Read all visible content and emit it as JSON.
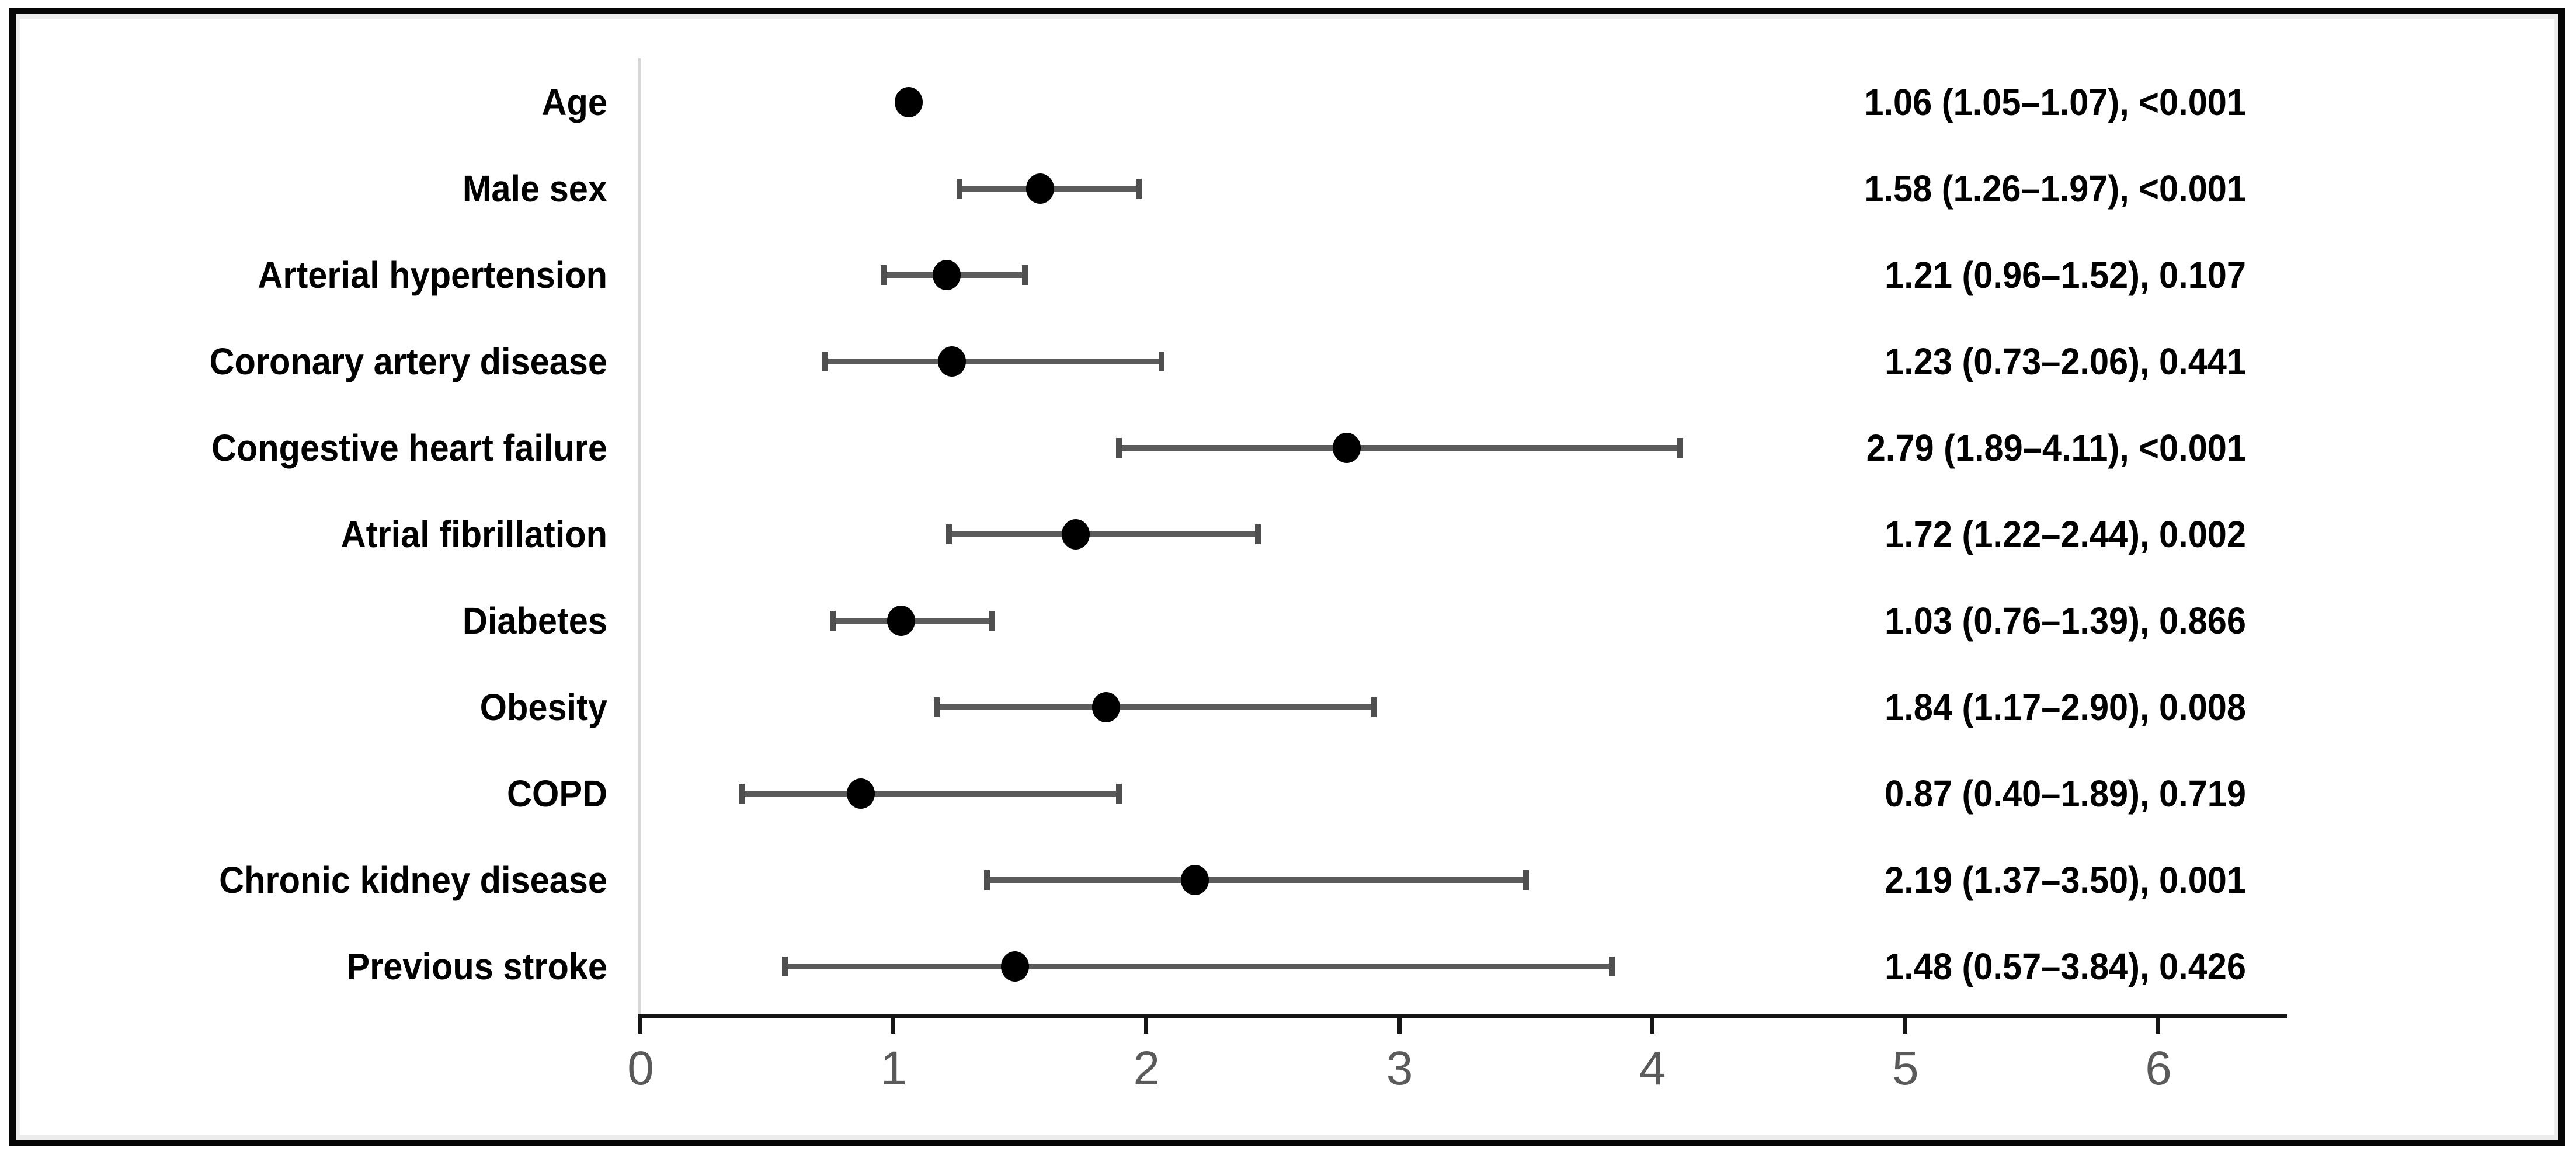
{
  "figure": {
    "background_color": "#ffffff",
    "frame_border_color": "#060606",
    "frame_inner_edge_color": "#ececec"
  },
  "chart_data": {
    "type": "scatter",
    "subtype": "forest-plot",
    "orientation": "horizontal",
    "title": "",
    "xlabel": "",
    "ylabel": "",
    "xlim": [
      0,
      6.5
    ],
    "x_ticks": [
      "0",
      "1",
      "2",
      "3",
      "4",
      "5",
      "6"
    ],
    "grid": false,
    "legend": null,
    "axis_color": "#161616",
    "tick_label_color": "#5a5a5a",
    "errorbar_color": "#5b5b5b",
    "errorbar_cap_color": "#4f4f4f",
    "marker_color": "#000000",
    "zero_reference_line_color": "#d7d7d7",
    "value_column_format": "estimate (ci_low–ci_high), p",
    "rows": [
      {
        "label": "Age",
        "estimate": 1.06,
        "ci_low": 1.05,
        "ci_high": 1.07,
        "p": "<0.001",
        "value_text": "1.06 (1.05–1.07), <0.001"
      },
      {
        "label": "Male sex",
        "estimate": 1.58,
        "ci_low": 1.26,
        "ci_high": 1.97,
        "p": "<0.001",
        "value_text": "1.58 (1.26–1.97), <0.001"
      },
      {
        "label": "Arterial hypertension",
        "estimate": 1.21,
        "ci_low": 0.96,
        "ci_high": 1.52,
        "p": "0.107",
        "value_text": "1.21 (0.96–1.52), 0.107"
      },
      {
        "label": "Coronary artery disease",
        "estimate": 1.23,
        "ci_low": 0.73,
        "ci_high": 2.06,
        "p": "0.441",
        "value_text": "1.23 (0.73–2.06), 0.441"
      },
      {
        "label": "Congestive heart failure",
        "estimate": 2.79,
        "ci_low": 1.89,
        "ci_high": 4.11,
        "p": "<0.001",
        "value_text": "2.79 (1.89–4.11), <0.001"
      },
      {
        "label": "Atrial fibrillation",
        "estimate": 1.72,
        "ci_low": 1.22,
        "ci_high": 2.44,
        "p": "0.002",
        "value_text": "1.72 (1.22–2.44), 0.002"
      },
      {
        "label": "Diabetes",
        "estimate": 1.03,
        "ci_low": 0.76,
        "ci_high": 1.39,
        "p": "0.866",
        "value_text": "1.03 (0.76–1.39), 0.866"
      },
      {
        "label": "Obesity",
        "estimate": 1.84,
        "ci_low": 1.17,
        "ci_high": 2.9,
        "p": "0.008",
        "value_text": "1.84 (1.17–2.90), 0.008"
      },
      {
        "label": "COPD",
        "estimate": 0.87,
        "ci_low": 0.4,
        "ci_high": 1.89,
        "p": "0.719",
        "value_text": "0.87 (0.40–1.89), 0.719"
      },
      {
        "label": "Chronic kidney disease",
        "estimate": 2.19,
        "ci_low": 1.37,
        "ci_high": 3.5,
        "p": "0.001",
        "value_text": "2.19 (1.37–3.50), 0.001"
      },
      {
        "label": "Previous stroke",
        "estimate": 1.48,
        "ci_low": 0.57,
        "ci_high": 3.84,
        "p": "0.426",
        "value_text": "1.48 (0.57–3.84), 0.426"
      }
    ]
  }
}
